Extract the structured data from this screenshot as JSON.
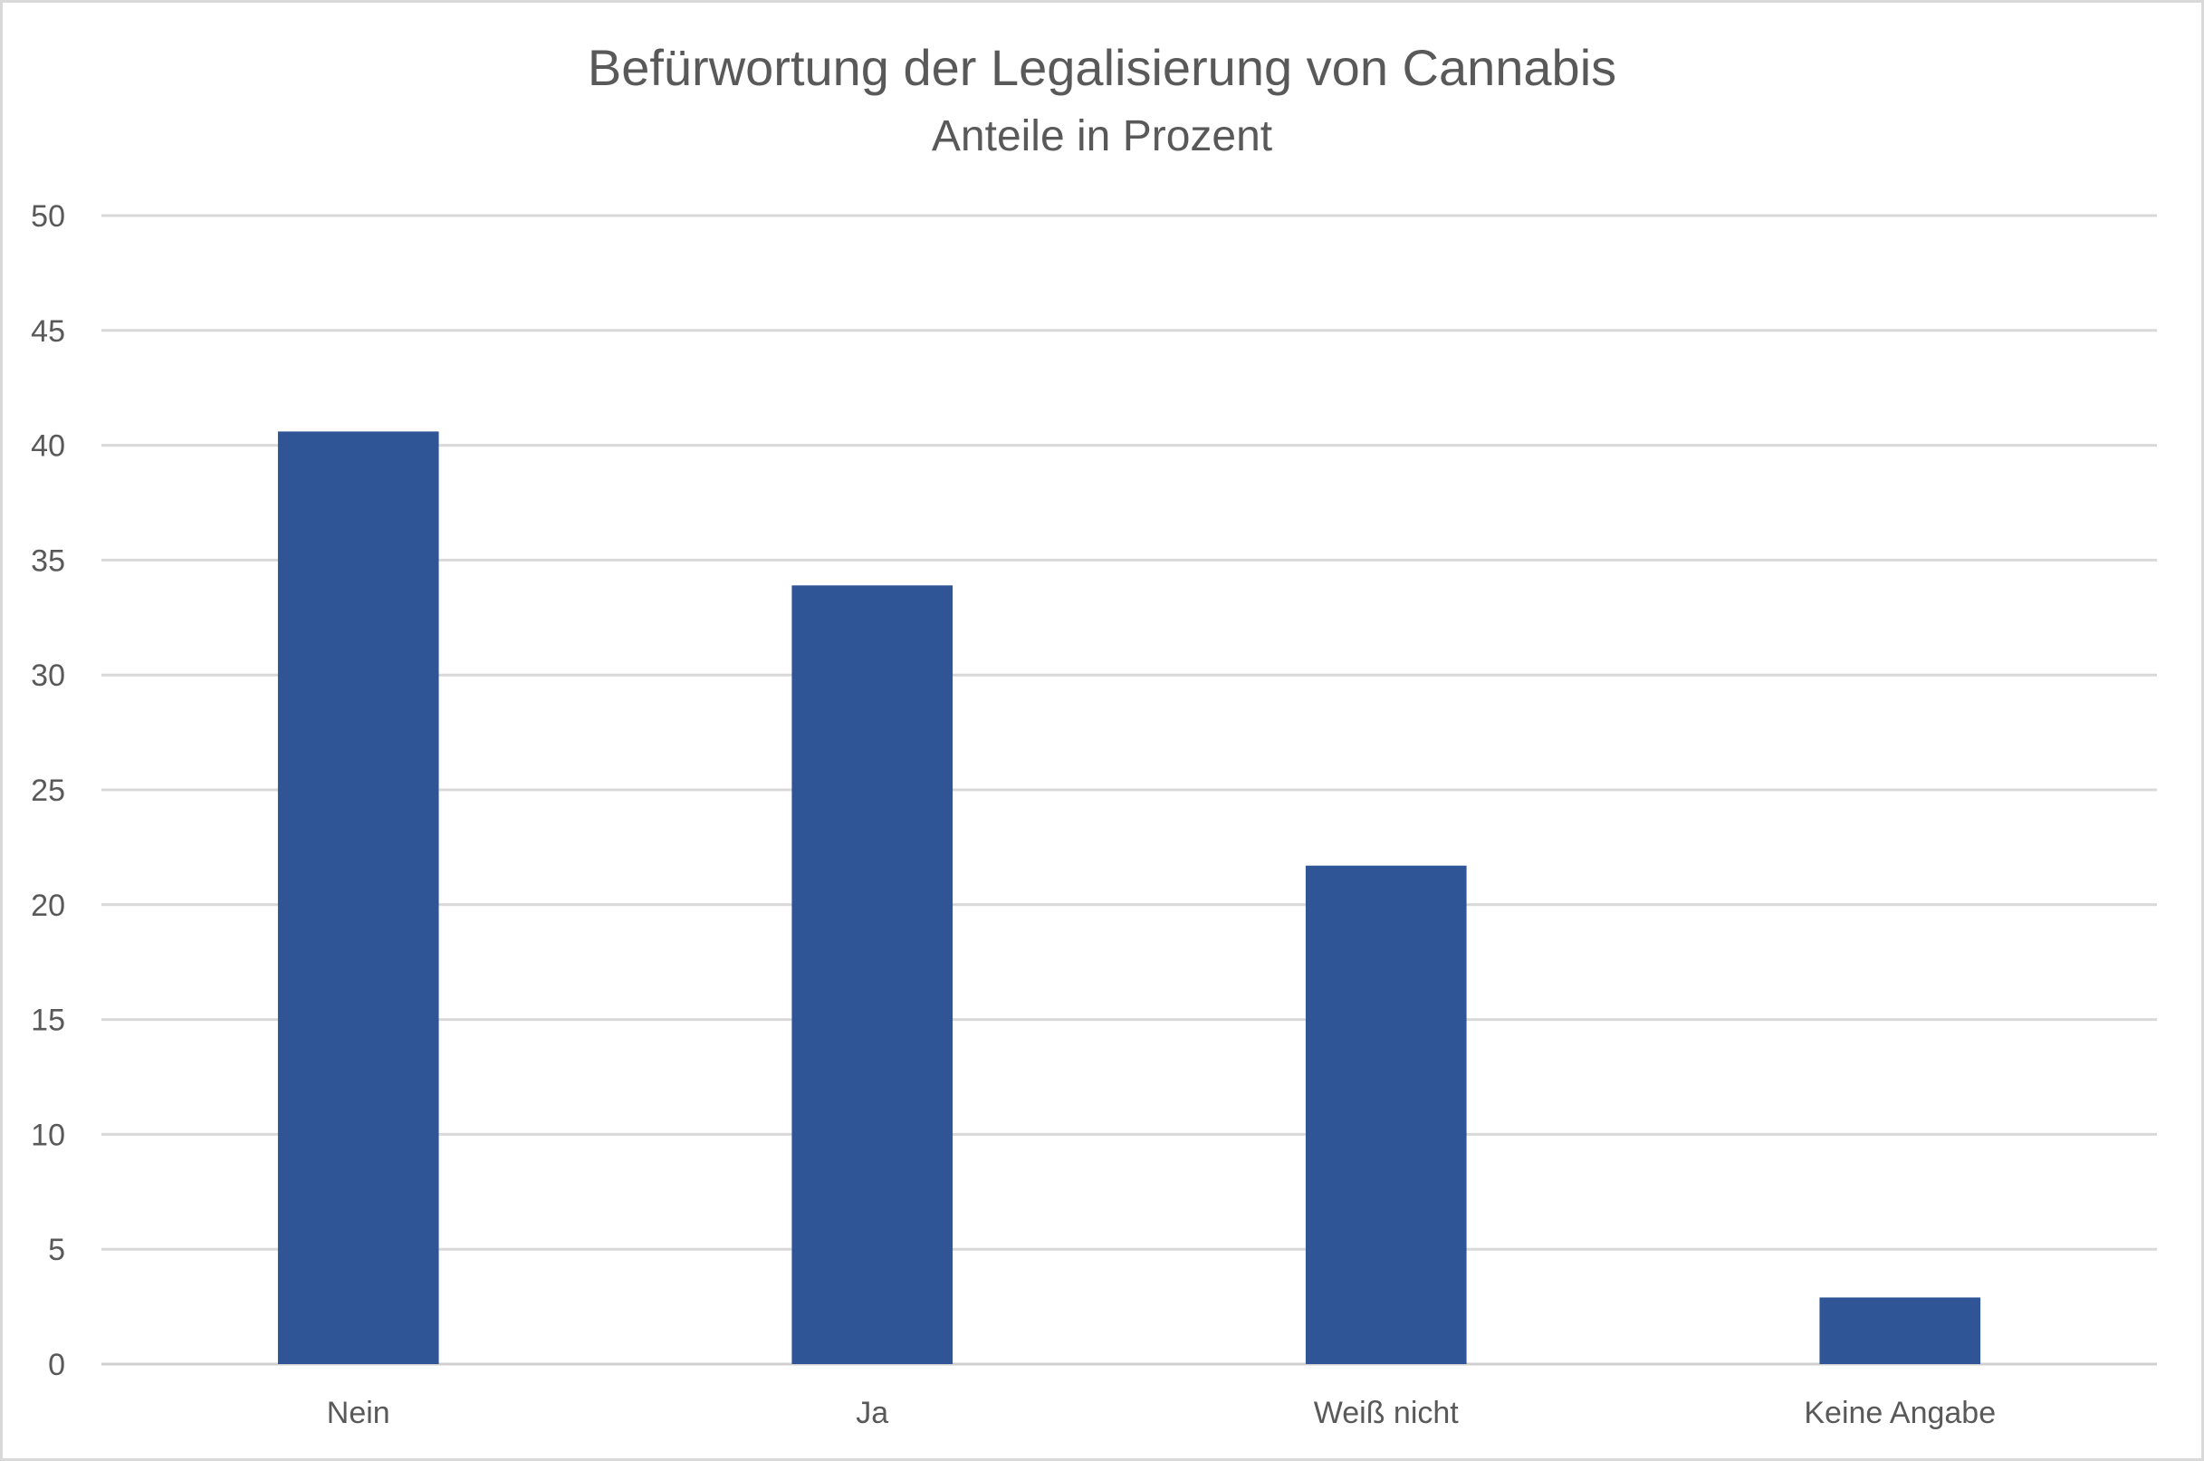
{
  "chart_data": {
    "type": "bar",
    "title": "Befürwortung der Legalisierung von Cannabis",
    "subtitle": "Anteile in Prozent",
    "categories": [
      "Nein",
      "Ja",
      "Weiß nicht",
      "Keine Angabe"
    ],
    "values": [
      40.6,
      33.9,
      21.7,
      2.9
    ],
    "ylim": [
      0,
      50
    ],
    "yticks": [
      0,
      5,
      10,
      15,
      20,
      25,
      30,
      35,
      40,
      45,
      50
    ],
    "xlabel": "",
    "ylabel": "",
    "grid": true,
    "legend": "none",
    "bar_color": "#2f5597"
  }
}
